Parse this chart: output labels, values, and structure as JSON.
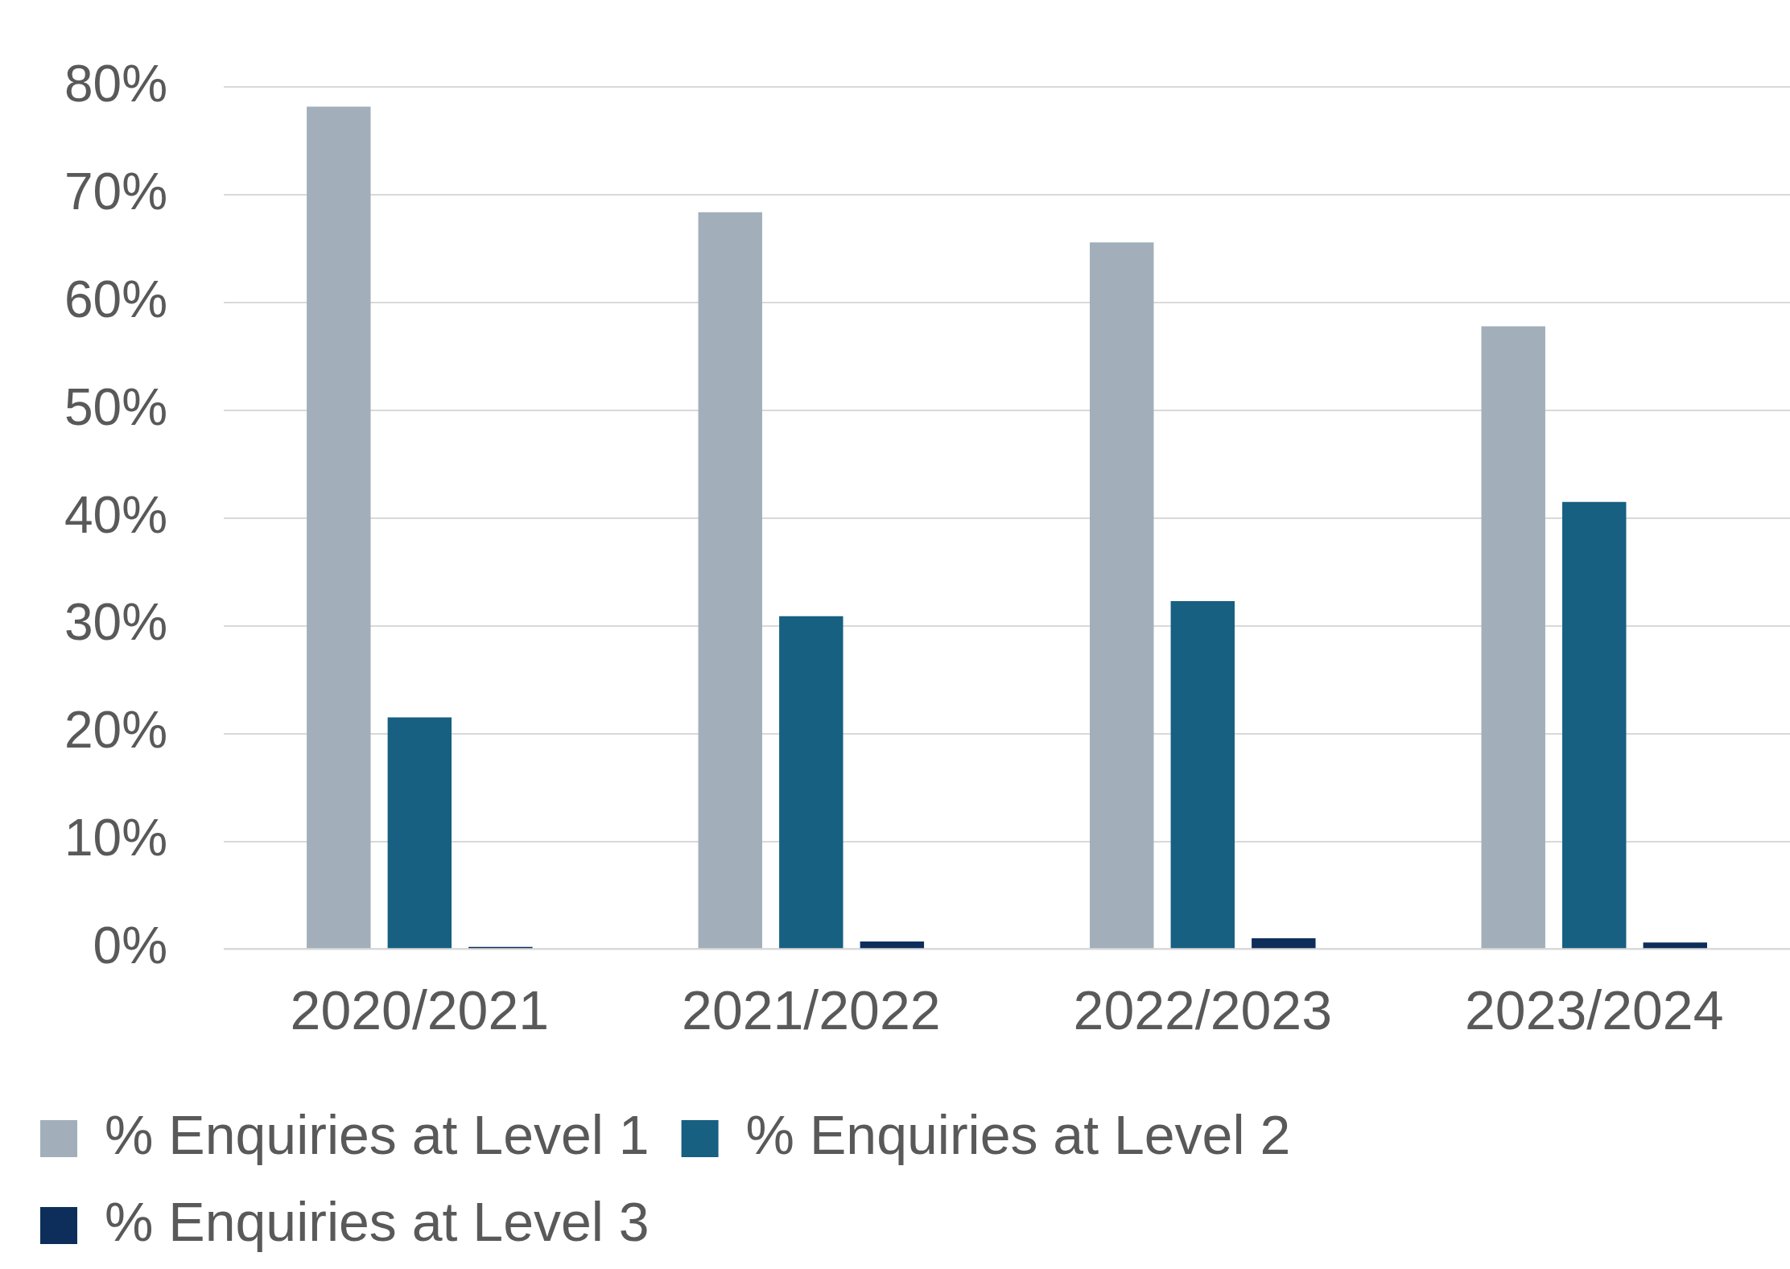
{
  "chart_data": {
    "type": "bar",
    "categories": [
      "2020/2021",
      "2021/2022",
      "2022/2023",
      "2023/2024"
    ],
    "series": [
      {
        "name": "% Enquiries at Level 1",
        "color": "#a2afba",
        "values": [
          78.2,
          68.4,
          65.6,
          57.8
        ]
      },
      {
        "name": "% Enquiries at Level 2",
        "color": "#176081",
        "values": [
          21.5,
          30.9,
          32.3,
          41.5
        ]
      },
      {
        "name": "% Enquiries at Level 3",
        "color": "#0d2e5a",
        "values": [
          0.2,
          0.7,
          1.0,
          0.6
        ]
      }
    ],
    "ylim": [
      0,
      80
    ],
    "yticks": [
      {
        "value": 0,
        "label": "0%"
      },
      {
        "value": 10,
        "label": "10%"
      },
      {
        "value": 20,
        "label": "20%"
      },
      {
        "value": 30,
        "label": "30%"
      },
      {
        "value": 40,
        "label": "40%"
      },
      {
        "value": 50,
        "label": "50%"
      },
      {
        "value": 60,
        "label": "60%"
      },
      {
        "value": 70,
        "label": "70%"
      },
      {
        "value": 80,
        "label": "80%"
      }
    ],
    "grid": "y",
    "legend": "bottom"
  }
}
